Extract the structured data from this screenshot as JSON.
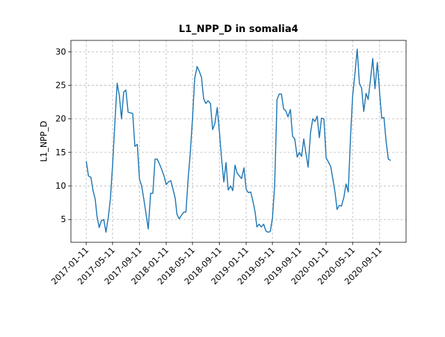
{
  "chart_data": {
    "type": "line",
    "title": "L1_NPP_D in somalia4",
    "ylabel": "L1_NPP_D",
    "x": [
      "2017-01-11",
      "2017-01-21",
      "2017-02-01",
      "2017-02-11",
      "2017-02-21",
      "2017-03-01",
      "2017-03-11",
      "2017-03-21",
      "2017-04-01",
      "2017-04-11",
      "2017-04-21",
      "2017-05-01",
      "2017-05-11",
      "2017-05-21",
      "2017-06-01",
      "2017-06-11",
      "2017-06-21",
      "2017-07-01",
      "2017-07-11",
      "2017-07-21",
      "2017-08-01",
      "2017-08-11",
      "2017-08-21",
      "2017-09-01",
      "2017-09-11",
      "2017-09-21",
      "2017-10-01",
      "2017-10-11",
      "2017-10-21",
      "2017-11-01",
      "2017-11-11",
      "2017-11-21",
      "2017-12-01",
      "2017-12-11",
      "2017-12-21",
      "2018-01-01",
      "2018-01-11",
      "2018-01-21",
      "2018-02-01",
      "2018-02-11",
      "2018-02-21",
      "2018-03-01",
      "2018-03-11",
      "2018-03-21",
      "2018-04-01",
      "2018-04-11",
      "2018-04-21",
      "2018-05-01",
      "2018-05-11",
      "2018-05-21",
      "2018-06-01",
      "2018-06-11",
      "2018-06-21",
      "2018-07-01",
      "2018-07-11",
      "2018-07-21",
      "2018-08-01",
      "2018-08-11",
      "2018-08-21",
      "2018-09-01",
      "2018-09-11",
      "2018-09-21",
      "2018-10-01",
      "2018-10-11",
      "2018-10-21",
      "2018-11-01",
      "2018-11-11",
      "2018-11-21",
      "2018-12-01",
      "2018-12-11",
      "2018-12-21",
      "2019-01-01",
      "2019-01-11",
      "2019-01-21",
      "2019-02-01",
      "2019-02-11",
      "2019-02-21",
      "2019-03-01",
      "2019-03-11",
      "2019-03-21",
      "2019-04-01",
      "2019-04-11",
      "2019-04-21",
      "2019-05-01",
      "2019-05-11",
      "2019-05-21",
      "2019-06-01",
      "2019-06-11",
      "2019-06-21",
      "2019-07-01",
      "2019-07-11",
      "2019-07-21",
      "2019-08-01",
      "2019-08-11",
      "2019-08-21",
      "2019-09-01",
      "2019-09-11",
      "2019-09-21",
      "2019-10-01",
      "2019-10-11",
      "2019-10-21",
      "2019-11-01",
      "2019-11-11",
      "2019-11-21",
      "2019-12-01",
      "2019-12-11",
      "2019-12-21",
      "2020-01-01",
      "2020-01-11",
      "2020-01-21",
      "2020-02-01",
      "2020-02-11",
      "2020-02-21",
      "2020-03-01",
      "2020-03-11",
      "2020-03-21",
      "2020-04-01",
      "2020-04-11",
      "2020-04-21",
      "2020-05-01",
      "2020-05-11",
      "2020-05-21",
      "2020-06-01",
      "2020-06-11",
      "2020-06-21",
      "2020-07-01",
      "2020-07-11",
      "2020-07-21",
      "2020-08-01",
      "2020-08-11",
      "2020-08-21",
      "2020-09-01",
      "2020-09-11",
      "2020-09-21",
      "2020-10-01",
      "2020-10-11",
      "2020-10-21",
      "2020-11-01"
    ],
    "series": [
      {
        "color": "#1f77b4",
        "values": [
          13.7,
          11.5,
          11.3,
          9.3,
          8,
          5.5,
          3.8,
          4.8,
          5,
          3.1,
          5.2,
          8,
          13,
          19,
          25.3,
          23.5,
          20,
          24,
          24.3,
          21,
          20.9,
          20.8,
          15.9,
          16.2,
          11,
          10,
          8,
          5.8,
          3.6,
          8.9,
          8.9,
          14,
          14,
          13.3,
          12.5,
          11.5,
          10.2,
          10.6,
          10.8,
          9.5,
          8.2,
          5.8,
          5.1,
          5.6,
          6.1,
          6.1,
          11,
          15,
          20,
          26,
          27.8,
          27.1,
          26.2,
          23,
          22.3,
          22.7,
          22.3,
          18.4,
          19.3,
          21.7,
          18,
          14,
          10.6,
          13.5,
          9.4,
          10,
          9.3,
          13.1,
          11.9,
          11.5,
          11.1,
          12.7,
          9.5,
          9,
          9.1,
          7.7,
          6.1,
          3.9,
          4.3,
          3.9,
          4.3,
          3.3,
          3.1,
          3.2,
          5.2,
          10,
          22.9,
          23.7,
          23.7,
          21.5,
          21.2,
          20.3,
          21.4,
          17.4,
          17,
          14.3,
          15,
          14.4,
          17,
          14.8,
          12.8,
          18,
          20,
          19.6,
          20.4,
          17.2,
          20.1,
          20,
          14.2,
          13.6,
          12.9,
          11,
          9,
          6.5,
          7.1,
          7,
          8.3,
          10.3,
          9.1,
          17,
          23.4,
          26.5,
          30.4,
          25.3,
          24.6,
          21.1,
          23.8,
          22.9,
          26,
          29,
          24.5,
          28.4,
          24,
          20.1,
          20.2,
          16.6,
          14,
          13.8
        ]
      }
    ],
    "xlim": [
      "2016-11-02",
      "2021-01-10"
    ],
    "xticks": [
      "2017-01-11",
      "2017-05-11",
      "2017-09-11",
      "2018-01-11",
      "2018-05-11",
      "2018-09-11",
      "2019-01-11",
      "2019-05-11",
      "2019-09-11",
      "2020-01-11",
      "2020-05-11",
      "2020-09-11"
    ],
    "ylim": [
      1.6,
      31.7
    ],
    "yticks": [
      5,
      10,
      15,
      20,
      25,
      30
    ],
    "grid": true
  }
}
